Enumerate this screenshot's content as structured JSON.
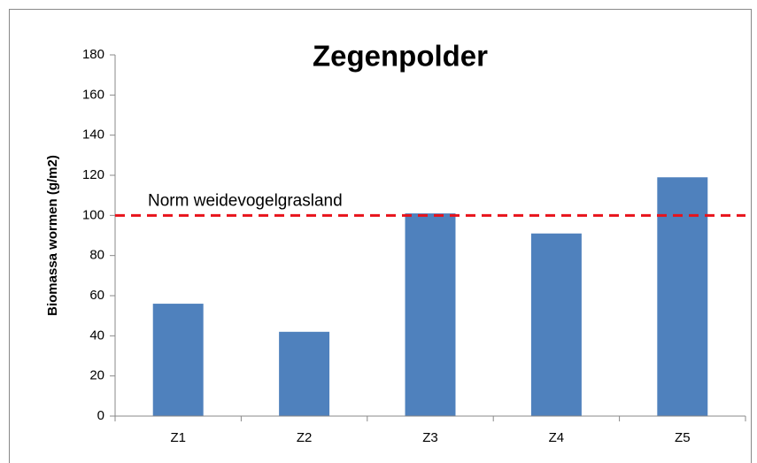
{
  "chart_data": {
    "type": "bar",
    "title": "Zegenpolder",
    "y_label": "Biomassa wormen (g/m2)",
    "categories": [
      "Z1",
      "Z2",
      "Z3",
      "Z4",
      "Z5"
    ],
    "values": [
      56,
      42,
      101,
      91,
      119
    ],
    "color": "#4f81bd",
    "ylim": [
      0,
      180
    ],
    "yticks": [
      0,
      20,
      40,
      60,
      80,
      100,
      120,
      140,
      160,
      180
    ],
    "grid": false,
    "reference_line": {
      "value": 100,
      "label": "Norm weidevogelgrasland",
      "color": "#e8131b"
    }
  }
}
